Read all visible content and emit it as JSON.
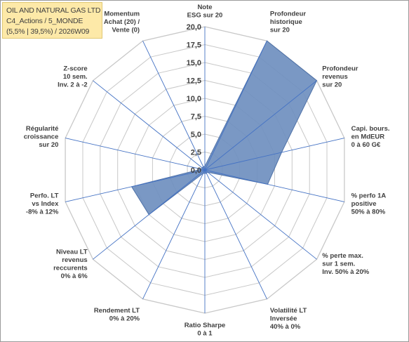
{
  "title_box": {
    "lines": [
      "OIL AND NATURAL GAS LTD",
      "C4_Actions / 5_MONDE",
      "(5,5% | 39,5%) / 2026W09"
    ]
  },
  "chart_data": {
    "type": "radar",
    "rmin": 0,
    "rmax": 20,
    "tick_step": 2.5,
    "tick_labels": [
      "0,0",
      "2,5",
      "5,0",
      "7,5",
      "10,0",
      "12,5",
      "15,0",
      "17,5",
      "20,0"
    ],
    "gridlines": true,
    "legend": "none",
    "categories": [
      "Note ESG sur 20",
      "Profondeur historique sur 20",
      "Profondeur revenus sur 20",
      "Capi. bours. en MdEUR 0 à 60 G€",
      "% perfo 1A positive 50% à 80%",
      "% perte max. sur 1 sem. Inv. 50% à 20%",
      "Volatilité LT Inversée 40% à 0%",
      "Ratio Sharpe 0 à 1",
      "Rendement LT 0% à 20%",
      "Niveau LT revenus reccurents 0% à 6%",
      "Perfo. LT vs Index -8% à 12%",
      "Régularité croissance sur 20",
      "Z-score 10 sem. Inv. 2 à -2",
      "Momentum Achat (20) / Vente (0)"
    ],
    "category_lines": [
      [
        "Note",
        "ESG sur 20"
      ],
      [
        "Profondeur",
        "historique",
        "sur 20"
      ],
      [
        "Profondeur",
        "revenus",
        "sur 20"
      ],
      [
        "Capi. bours.",
        "en MdEUR",
        "0 à 60 G€"
      ],
      [
        "% perfo 1A",
        "positive",
        "50% à 80%"
      ],
      [
        "% perte max.",
        "sur 1 sem.",
        "Inv. 50% à 20%"
      ],
      [
        "Volatilité LT",
        "Inversée",
        "40% à 0%"
      ],
      [
        "Ratio Sharpe",
        "0 à 1"
      ],
      [
        "Rendement LT",
        "0% à 20%"
      ],
      [
        "Niveau LT",
        "revenus",
        "reccurents",
        "0% à 6%"
      ],
      [
        "Perfo. LT",
        "vs Index",
        "-8% à 12%"
      ],
      [
        "Régularité",
        "croissance",
        "sur 20"
      ],
      [
        "Z-score",
        "10 sem.",
        "Inv. 2 à -2"
      ],
      [
        "Momentum",
        "Achat (20) /",
        "Vente (0)"
      ]
    ],
    "series": [
      {
        "values": [
          0.5,
          20,
          20,
          11,
          9,
          0.5,
          0.5,
          0.5,
          0.5,
          10,
          10.5,
          0.5,
          0.5,
          0.5
        ]
      }
    ],
    "colors": {
      "fill": "#6f8fbf",
      "stroke": "#4f72a8",
      "grid": "#c8c8c8",
      "axis": "#4472c4"
    }
  }
}
